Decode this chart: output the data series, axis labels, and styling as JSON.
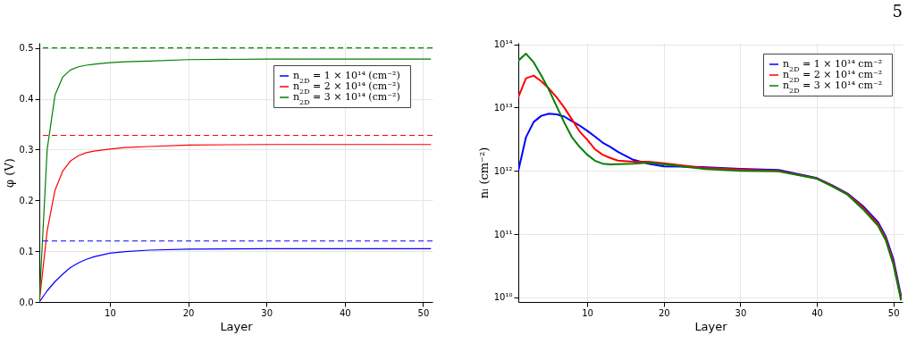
{
  "chart_data": [
    {
      "type": "line",
      "xlabel": "Layer",
      "ylabel": "φ (V)",
      "x": [
        1,
        2,
        3,
        4,
        5,
        6,
        7,
        8,
        10,
        12,
        15,
        20,
        30,
        40,
        51
      ],
      "xlim": [
        1,
        51.2
      ],
      "xticks": [
        10,
        20,
        30,
        40,
        50
      ],
      "ylim": [
        0,
        0.51
      ],
      "yticks": [
        {
          "value": 0,
          "label": "0.0"
        },
        0.1,
        0.2,
        0.3,
        0.4,
        0.5
      ],
      "grid": true,
      "legend": "top right",
      "line_style": "solid",
      "series": [
        {
          "name": "n$_{2D}$ = 1 × 10¹⁴ (cm⁻²)",
          "color": "#0000ff",
          "values": [
            0,
            0.022,
            0.04,
            0.055,
            0.068,
            0.077,
            0.084,
            0.089,
            0.096,
            0.099,
            0.102,
            0.104,
            0.105,
            0.105,
            0.105
          ]
        },
        {
          "name": "n$_{2D}$ = 2 × 10¹⁴ (cm⁻²)",
          "color": "#ff0000",
          "values": [
            0,
            0.14,
            0.22,
            0.258,
            0.278,
            0.288,
            0.294,
            0.297,
            0.301,
            0.304,
            0.306,
            0.309,
            0.31,
            0.31,
            0.31
          ]
        },
        {
          "name": "n$_{2D}$ = 3 × 10¹⁴ (cm⁻²)",
          "color": "#008000",
          "values": [
            0,
            0.3,
            0.407,
            0.443,
            0.457,
            0.463,
            0.466,
            0.468,
            0.471,
            0.473,
            0.474,
            0.477,
            0.478,
            0.478,
            0.478
          ]
        }
      ],
      "ref_lines": [
        {
          "axis": "y",
          "value": 0.12,
          "color": "#0000ff",
          "line_style": "dashed"
        },
        {
          "axis": "y",
          "value": 0.328,
          "color": "#ff0000",
          "line_style": "dashed"
        },
        {
          "axis": "y",
          "value": 0.5,
          "color": "#008000",
          "line_style": "dashed"
        }
      ]
    },
    {
      "type": "line",
      "xlabel": "Layer",
      "ylabel": "nₗ (cm⁻²)",
      "log": "y",
      "annotations": [
        "5"
      ],
      "x": [
        1,
        2,
        3,
        4,
        5,
        6,
        7,
        8,
        9,
        10,
        11,
        12,
        13,
        14,
        16,
        18,
        20,
        25,
        30,
        35,
        40,
        42,
        44,
        46,
        48,
        49,
        50,
        51
      ],
      "xlim": [
        1,
        51.2
      ],
      "xticks": [
        10,
        20,
        30,
        40,
        50
      ],
      "ylim": [
        8500000000.0,
        105000000000000.0
      ],
      "yticks": [
        {
          "value": 10000000000.0,
          "label": "10¹⁰"
        },
        {
          "value": 100000000000.0,
          "label": "10¹¹"
        },
        {
          "value": 1000000000000.0,
          "label": "10¹²"
        },
        {
          "value": 10000000000000.0,
          "label": "10¹³"
        },
        {
          "value": 100000000000000.0,
          "label": "10¹⁴"
        }
      ],
      "grid": true,
      "legend": "top right",
      "line_style": "solid",
      "series": [
        {
          "name": "n$_{2D}$ = 1 × 10¹⁴ cm⁻²",
          "color": "#0000ff",
          "values": [
            1000000000000.0,
            3400000000000.0,
            5900000000000.0,
            7400000000000.0,
            8000000000000.0,
            7800000000000.0,
            7200000000000.0,
            6100000000000.0,
            5200000000000.0,
            4300000000000.0,
            3500000000000.0,
            2800000000000.0,
            2400000000000.0,
            2000000000000.0,
            1500000000000.0,
            1300000000000.0,
            1180000000000.0,
            1150000000000.0,
            1080000000000.0,
            1030000000000.0,
            770000000000.0,
            590000000000.0,
            440000000000.0,
            280000000000.0,
            155000000000.0,
            92000000000.0,
            40000000000.0,
            10500000000.0
          ]
        },
        {
          "name": "n$_{2D}$ = 2 × 10¹⁴ cm⁻²",
          "color": "#ff0000",
          "values": [
            14500000000000.0,
            29000000000000.0,
            32000000000000.0,
            26000000000000.0,
            20000000000000.0,
            14500000000000.0,
            10000000000000.0,
            6500000000000.0,
            4200000000000.0,
            3100000000000.0,
            2200000000000.0,
            1800000000000.0,
            1600000000000.0,
            1450000000000.0,
            1400000000000.0,
            1400000000000.0,
            1320000000000.0,
            1120000000000.0,
            1050000000000.0,
            1000000000000.0,
            760000000000.0,
            580000000000.0,
            430000000000.0,
            265000000000.0,
            145000000000.0,
            86000000000.0,
            36000000000.0,
            9600000000.0
          ]
        },
        {
          "name": "n$_{2D}$ = 3 × 10¹⁴ cm⁻²",
          "color": "#008000",
          "values": [
            55000000000000.0,
            71000000000000.0,
            52000000000000.0,
            32000000000000.0,
            19000000000000.0,
            10500000000000.0,
            5800000000000.0,
            3400000000000.0,
            2400000000000.0,
            1800000000000.0,
            1450000000000.0,
            1300000000000.0,
            1270000000000.0,
            1280000000000.0,
            1300000000000.0,
            1350000000000.0,
            1270000000000.0,
            1080000000000.0,
            1000000000000.0,
            980000000000.0,
            750000000000.0,
            570000000000.0,
            420000000000.0,
            250000000000.0,
            135000000000.0,
            80000000000.0,
            33000000000.0,
            9000000000.0
          ]
        }
      ]
    }
  ]
}
